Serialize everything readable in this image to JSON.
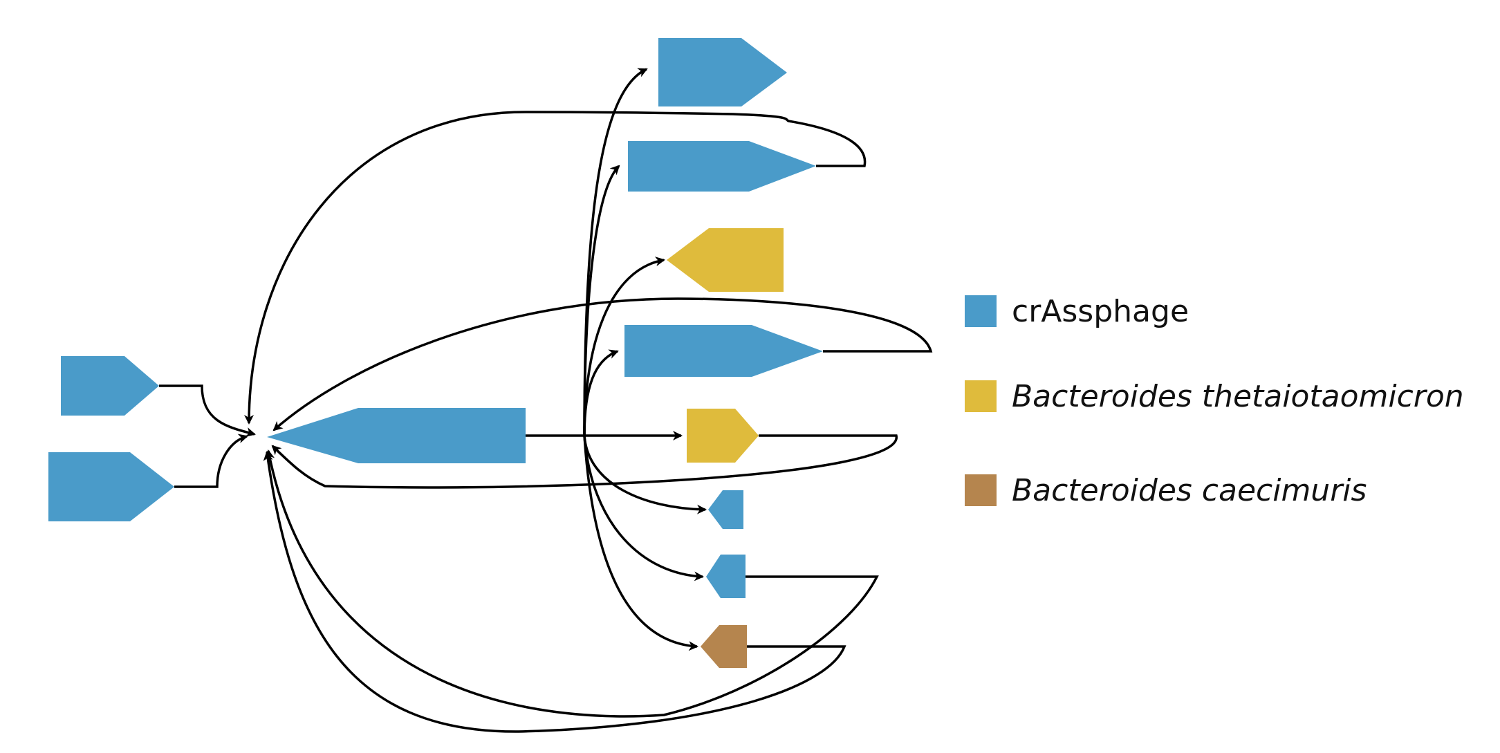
{
  "colors": {
    "crassphage": "#4a9bc9",
    "thetaiotaomicron": "#dfbb3c",
    "caecimuris": "#b5854e",
    "edge": "#000000"
  },
  "legend": {
    "items": [
      {
        "label": "crAssphage",
        "italic": false,
        "color": "#4a9bc9"
      },
      {
        "label": "Bacteroides thetaiotaomicron",
        "italic": true,
        "color": "#dfbb3c"
      },
      {
        "label": "Bacteroides caecimuris",
        "italic": true,
        "color": "#b5854e"
      }
    ]
  }
}
